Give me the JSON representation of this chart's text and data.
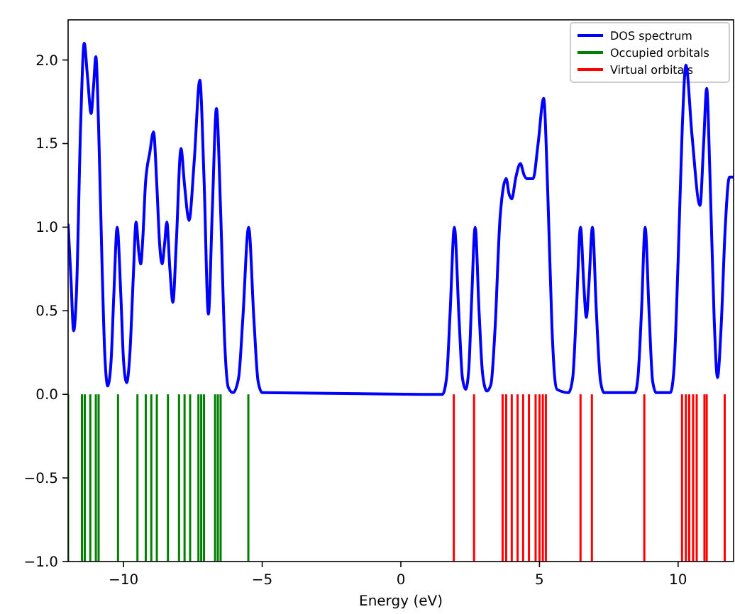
{
  "chart_data": {
    "type": "line",
    "xlabel": "Energy (eV)",
    "xlim": [
      -12,
      12
    ],
    "ylim": [
      -1,
      2.24
    ],
    "xticks": [
      {
        "value": -10,
        "label": "−10"
      },
      {
        "value": -5,
        "label": "−5"
      },
      {
        "value": 0,
        "label": "0"
      },
      {
        "value": 5,
        "label": "5"
      },
      {
        "value": 10,
        "label": "10"
      }
    ],
    "yticks": [
      {
        "value": -1,
        "label": "−1.0"
      },
      {
        "value": -0.5,
        "label": "−0.5"
      },
      {
        "value": 0,
        "label": "0.0"
      },
      {
        "value": 0.5,
        "label": "0.5"
      },
      {
        "value": 1,
        "label": "1.0"
      },
      {
        "value": 1.5,
        "label": "1.5"
      },
      {
        "value": 2,
        "label": "2.0"
      }
    ],
    "grid": false,
    "legend": "top right",
    "line_style": "solid",
    "marker": "none",
    "series": [
      {
        "name": "DOS spectrum",
        "color": "#0000ff",
        "x": [
          -12,
          -11.9,
          -11.8,
          -11.7,
          -11.55,
          -11.42,
          -11.3,
          -11.17,
          -11.08,
          -11.0,
          -10.9,
          -10.78,
          -10.68,
          -10.57,
          -10.45,
          -10.35,
          -10.23,
          -10.1,
          -10.0,
          -9.89,
          -9.77,
          -9.65,
          -9.55,
          -9.45,
          -9.38,
          -9.3,
          -9.21,
          -9.05,
          -8.92,
          -8.8,
          -8.7,
          -8.61,
          -8.52,
          -8.44,
          -8.33,
          -8.22,
          -8.1,
          -7.93,
          -7.8,
          -7.64,
          -7.45,
          -7.25,
          -7.1,
          -6.94,
          -6.8,
          -6.65,
          -6.5,
          -6.35,
          -6.22,
          -6.05,
          -5.85,
          -5.7,
          -5.49,
          -5.3,
          -5.15,
          -5.0,
          1.5,
          1.65,
          1.78,
          1.93,
          2.1,
          2.22,
          2.34,
          2.45,
          2.55,
          2.68,
          2.82,
          2.95,
          3.1,
          3.25,
          3.4,
          3.58,
          3.8,
          3.9,
          4.0,
          4.15,
          4.31,
          4.45,
          4.55,
          4.77,
          4.95,
          5.15,
          5.3,
          5.45,
          5.55,
          5.63,
          6.05,
          6.2,
          6.33,
          6.48,
          6.6,
          6.69,
          6.78,
          6.91,
          7.05,
          7.2,
          7.33,
          8.44,
          8.55,
          8.68,
          8.81,
          8.95,
          9.08,
          9.21,
          9.72,
          9.85,
          10.0,
          10.15,
          10.28,
          10.5,
          10.79,
          10.92,
          11.03,
          11.15,
          11.3,
          11.42,
          11.55,
          11.7,
          11.85,
          12
        ],
        "values": [
          1.02,
          0.7,
          0.38,
          0.6,
          1.6,
          2.1,
          1.9,
          1.68,
          1.85,
          2.02,
          1.6,
          0.8,
          0.25,
          0.05,
          0.2,
          0.6,
          1.0,
          0.6,
          0.2,
          0.07,
          0.25,
          0.7,
          1.03,
          0.85,
          0.78,
          0.95,
          1.26,
          1.45,
          1.57,
          1.25,
          0.9,
          0.78,
          0.9,
          1.03,
          0.75,
          0.55,
          0.9,
          1.47,
          1.25,
          1.04,
          1.4,
          1.88,
          1.3,
          0.48,
          1.1,
          1.71,
          1.1,
          0.3,
          0.04,
          0.01,
          0.1,
          0.45,
          1.0,
          0.45,
          0.08,
          0.01,
          0.0,
          0.1,
          0.5,
          1.0,
          0.45,
          0.1,
          0.03,
          0.15,
          0.55,
          1.0,
          0.5,
          0.12,
          0.02,
          0.06,
          0.4,
          1.06,
          1.29,
          1.2,
          1.17,
          1.3,
          1.38,
          1.31,
          1.29,
          1.29,
          1.5,
          1.77,
          1.2,
          0.4,
          0.1,
          0.03,
          0.01,
          0.1,
          0.5,
          1.0,
          0.65,
          0.46,
          0.65,
          1.0,
          0.5,
          0.08,
          0.01,
          0.01,
          0.1,
          0.5,
          1.0,
          0.5,
          0.08,
          0.01,
          0.01,
          0.15,
          0.8,
          1.6,
          1.97,
          1.55,
          1.13,
          1.5,
          1.83,
          1.3,
          0.45,
          0.1,
          0.4,
          1.0,
          1.3,
          1.3
        ]
      },
      {
        "name": "Occupied orbitals",
        "type": "bar",
        "color": "#008000",
        "x": [
          -12.0,
          -11.5,
          -11.4,
          -11.2,
          -11.0,
          -10.9,
          -10.2,
          -9.5,
          -9.2,
          -9.0,
          -8.8,
          -8.4,
          -8.0,
          -7.8,
          -7.6,
          -7.3,
          -7.2,
          -7.1,
          -6.7,
          -6.6,
          -6.5,
          -5.5
        ],
        "values": [
          1,
          1,
          1,
          1,
          1,
          1,
          1,
          1,
          1,
          1,
          1,
          1,
          1,
          1,
          1,
          1,
          1,
          1,
          1,
          1,
          1,
          1
        ],
        "base": [
          -1,
          -1,
          -1,
          -1,
          -1,
          -1,
          -1,
          -1,
          -1,
          -1,
          -1,
          -1,
          -1,
          -1,
          -1,
          -1,
          -1,
          -1,
          -1,
          -1,
          -1,
          -1
        ]
      },
      {
        "name": "Virtual orbitals",
        "type": "bar",
        "color": "#ff0000",
        "x": [
          1.91,
          2.64,
          3.67,
          3.8,
          4.0,
          4.21,
          4.41,
          4.62,
          4.86,
          5.0,
          5.12,
          5.23,
          6.48,
          6.89,
          8.78,
          10.14,
          10.28,
          10.4,
          10.54,
          10.67,
          10.95,
          11.03,
          11.68
        ],
        "values": [
          1,
          1,
          1,
          1,
          1,
          1,
          1,
          1,
          1,
          1,
          1,
          1,
          1,
          1,
          1,
          1,
          1,
          1,
          1,
          1,
          1,
          1,
          1
        ],
        "base": [
          -1,
          -1,
          -1,
          -1,
          -1,
          -1,
          -1,
          -1,
          -1,
          -1,
          -1,
          -1,
          -1,
          -1,
          -1,
          -1,
          -1,
          -1,
          -1,
          -1,
          -1,
          -1,
          -1
        ]
      }
    ]
  }
}
